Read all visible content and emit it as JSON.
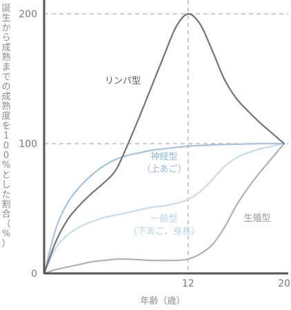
{
  "chart_data": {
    "type": "line",
    "xlabel": "年齢（歳）",
    "ylabel": "誕生から成熟までの成熟度を100%とした割合（%）",
    "xlim": [
      0,
      20
    ],
    "ylim": [
      0,
      200
    ],
    "x_ticks": [
      {
        "value": 12,
        "label": "12"
      },
      {
        "value": 20,
        "label": "20"
      }
    ],
    "y_ticks": [
      {
        "value": 0,
        "label": "0"
      },
      {
        "value": 100,
        "label": "100"
      },
      {
        "value": 200,
        "label": "200"
      }
    ],
    "guides": {
      "x": [
        12
      ],
      "y": [
        100,
        200
      ],
      "style": "dashed"
    },
    "grid": false,
    "legend": "inline labels",
    "series": [
      {
        "name": "リンパ型",
        "label_lines": [
          "リンパ型"
        ],
        "color": "#7a6f72",
        "points": [
          [
            0,
            0
          ],
          [
            1,
            25
          ],
          [
            2,
            42
          ],
          [
            3,
            53
          ],
          [
            4,
            62
          ],
          [
            5,
            70
          ],
          [
            6,
            80
          ],
          [
            7,
            100
          ],
          [
            8,
            122
          ],
          [
            9,
            145
          ],
          [
            10,
            168
          ],
          [
            11,
            190
          ],
          [
            12,
            200
          ],
          [
            13,
            192
          ],
          [
            14,
            172
          ],
          [
            15,
            150
          ],
          [
            16,
            135
          ],
          [
            17,
            125
          ],
          [
            18,
            116
          ],
          [
            19,
            108
          ],
          [
            20,
            100
          ]
        ]
      },
      {
        "name": "神経型（上あご）",
        "label_lines": [
          "神経型",
          "（上あご）"
        ],
        "color": "#a2c2df",
        "points": [
          [
            0,
            0
          ],
          [
            1,
            35
          ],
          [
            2,
            55
          ],
          [
            3,
            67
          ],
          [
            4,
            76
          ],
          [
            5,
            83
          ],
          [
            6,
            88
          ],
          [
            7,
            91
          ],
          [
            8,
            93
          ],
          [
            9,
            95
          ],
          [
            10,
            96
          ],
          [
            12,
            98
          ],
          [
            14,
            99
          ],
          [
            16,
            99.5
          ],
          [
            18,
            100
          ],
          [
            20,
            100
          ]
        ]
      },
      {
        "name": "一般型（下あご、身長）",
        "label_lines": [
          "一般型",
          "（下あご、身長）"
        ],
        "color": "#c5dced",
        "points": [
          [
            0,
            0
          ],
          [
            1,
            20
          ],
          [
            2,
            30
          ],
          [
            3,
            36
          ],
          [
            4,
            40
          ],
          [
            5,
            43
          ],
          [
            6,
            45
          ],
          [
            7,
            47
          ],
          [
            8,
            49
          ],
          [
            9,
            51
          ],
          [
            10,
            52
          ],
          [
            11,
            54
          ],
          [
            12,
            57
          ],
          [
            13,
            63
          ],
          [
            14,
            72
          ],
          [
            15,
            82
          ],
          [
            16,
            89
          ],
          [
            17,
            93
          ],
          [
            18,
            96
          ],
          [
            19,
            98
          ],
          [
            20,
            100
          ]
        ]
      },
      {
        "name": "生殖型",
        "label_lines": [
          "生殖型"
        ],
        "color": "#b0b0b0",
        "points": [
          [
            0,
            0
          ],
          [
            1,
            3
          ],
          [
            2,
            5
          ],
          [
            3,
            7
          ],
          [
            4,
            9
          ],
          [
            5,
            10
          ],
          [
            6,
            11
          ],
          [
            7,
            11
          ],
          [
            8,
            10.5
          ],
          [
            9,
            10
          ],
          [
            10,
            10
          ],
          [
            11,
            10
          ],
          [
            12,
            11
          ],
          [
            13,
            15
          ],
          [
            14,
            22
          ],
          [
            15,
            35
          ],
          [
            16,
            52
          ],
          [
            17,
            66
          ],
          [
            18,
            78
          ],
          [
            19,
            89
          ],
          [
            20,
            100
          ]
        ]
      }
    ]
  }
}
